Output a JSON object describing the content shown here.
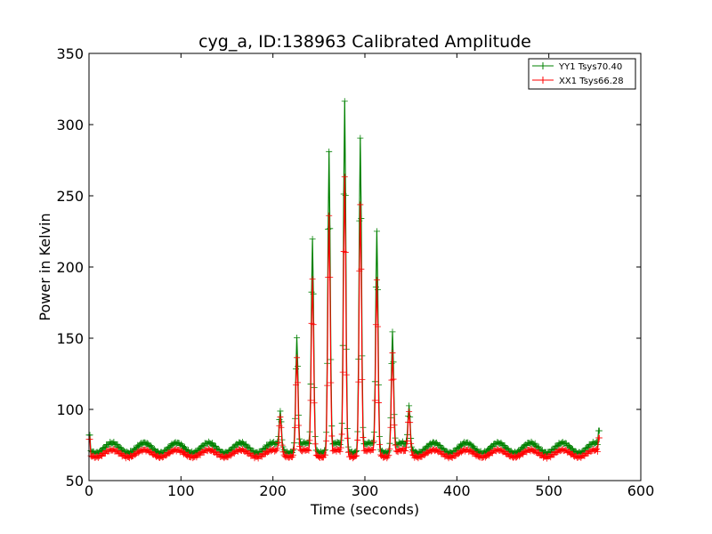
{
  "chart_data": {
    "type": "line",
    "title": "cyg_a, ID:138963 Calibrated Amplitude",
    "xlabel": "Time (seconds)",
    "ylabel": "Power in Kelvin",
    "xlim": [
      0,
      600
    ],
    "ylim": [
      50,
      350
    ],
    "xticks": [
      0,
      100,
      200,
      300,
      400,
      500,
      600
    ],
    "yticks": [
      50,
      100,
      150,
      200,
      250,
      300,
      350
    ],
    "grid": false,
    "legend_position": "top-right",
    "time_range": [
      0,
      555
    ],
    "series": [
      {
        "name": "YY1 Tsys70.40",
        "color": "#008000",
        "baseline": 73,
        "ripple": 3.5,
        "start_value": 82,
        "end_value": 85,
        "peaks": [
          {
            "t": 208,
            "value": 98
          },
          {
            "t": 226,
            "value": 150
          },
          {
            "t": 243,
            "value": 220
          },
          {
            "t": 261,
            "value": 282
          },
          {
            "t": 278,
            "value": 315
          },
          {
            "t": 295,
            "value": 292
          },
          {
            "t": 313,
            "value": 225
          },
          {
            "t": 330,
            "value": 155
          },
          {
            "t": 348,
            "value": 102
          }
        ]
      },
      {
        "name": "XX1 Tsys66.28",
        "color": "#ff0000",
        "baseline": 69,
        "ripple": 2.5,
        "start_value": 79,
        "end_value": 80,
        "peaks": [
          {
            "t": 208,
            "value": 94
          },
          {
            "t": 226,
            "value": 136
          },
          {
            "t": 243,
            "value": 192
          },
          {
            "t": 261,
            "value": 237
          },
          {
            "t": 278,
            "value": 262
          },
          {
            "t": 295,
            "value": 245
          },
          {
            "t": 313,
            "value": 191
          },
          {
            "t": 330,
            "value": 140
          },
          {
            "t": 348,
            "value": 98
          }
        ]
      }
    ]
  }
}
